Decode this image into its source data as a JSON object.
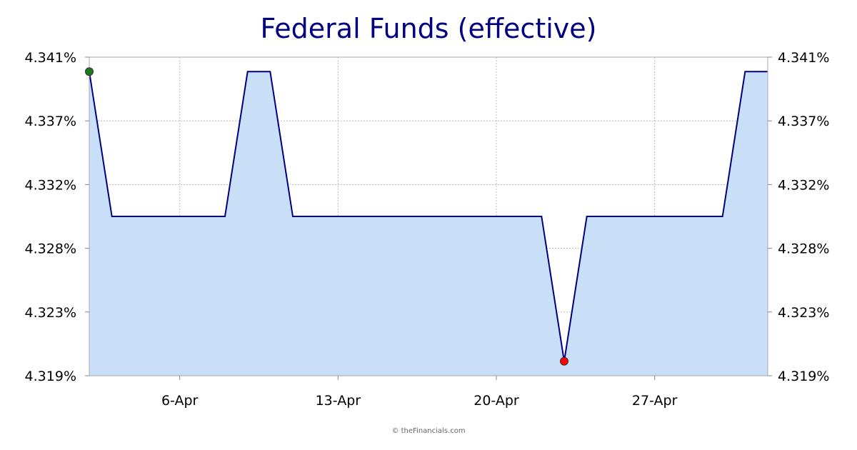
{
  "chart_data": {
    "type": "area",
    "title": "Federal Funds (effective)",
    "xlabel": "",
    "ylabel": "",
    "x_tick_labels": [
      "6-Apr",
      "13-Apr",
      "20-Apr",
      "27-Apr"
    ],
    "x_tick_days": [
      6,
      13,
      20,
      27
    ],
    "y_tick_labels": [
      "4.341%",
      "4.337%",
      "4.332%",
      "4.328%",
      "4.323%",
      "4.319%"
    ],
    "ylim": [
      4.319,
      4.341
    ],
    "xlim": [
      2,
      32
    ],
    "grid": true,
    "series": [
      {
        "x": [
          2,
          3,
          4,
          5,
          6,
          7,
          8,
          9,
          10,
          11,
          12,
          13,
          14,
          15,
          16,
          17,
          18,
          19,
          20,
          21,
          22,
          23,
          24,
          25,
          26,
          27,
          28,
          29,
          30,
          31,
          32
        ],
        "values": [
          4.34,
          4.33,
          4.33,
          4.33,
          4.33,
          4.33,
          4.33,
          4.34,
          4.34,
          4.33,
          4.33,
          4.33,
          4.33,
          4.33,
          4.33,
          4.33,
          4.33,
          4.33,
          4.33,
          4.33,
          4.33,
          4.32,
          4.33,
          4.33,
          4.33,
          4.33,
          4.33,
          4.33,
          4.33,
          4.34,
          4.34
        ]
      }
    ],
    "markers": [
      {
        "type": "high",
        "x": 2,
        "value": 4.34,
        "color": "#1a7a1a"
      },
      {
        "type": "low",
        "x": 23,
        "value": 4.32,
        "color": "#ff0000"
      }
    ],
    "colors": {
      "line": "#000080",
      "fill": "#c9dff7",
      "grid": "#bbbbbb",
      "title": "#000080"
    }
  },
  "credit": "© theFinancials.com"
}
